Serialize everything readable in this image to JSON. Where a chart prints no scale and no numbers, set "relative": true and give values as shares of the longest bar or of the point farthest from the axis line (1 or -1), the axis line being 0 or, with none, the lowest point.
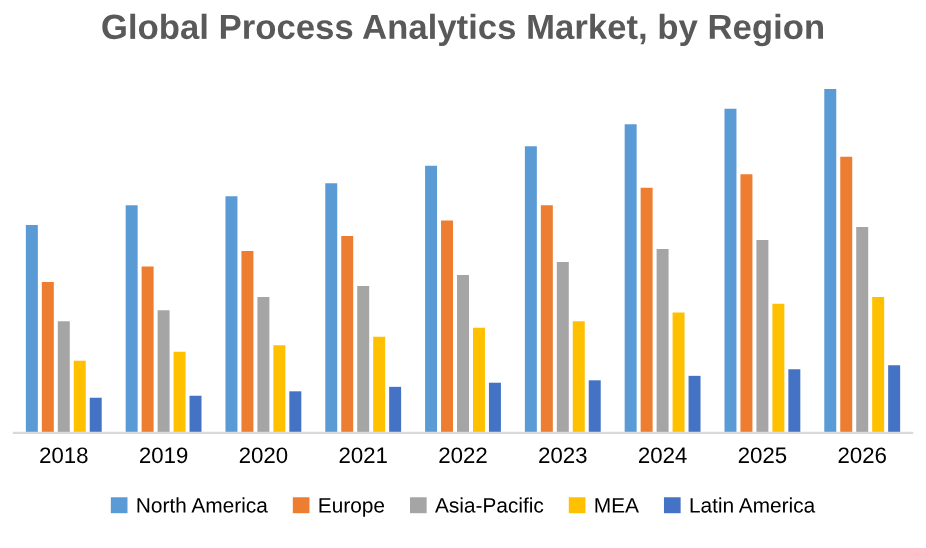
{
  "chart_data": {
    "type": "bar",
    "title": "Global Process Analytics Market, by Region",
    "relative": true,
    "legend": "bottom",
    "grid": false,
    "categories": [
      "2018",
      "2019",
      "2020",
      "2021",
      "2022",
      "2023",
      "2024",
      "2025",
      "2026"
    ],
    "series": [
      {
        "name": "North America",
        "color": "#5b9bd5",
        "values": [
          0.605,
          0.662,
          0.688,
          0.726,
          0.777,
          0.834,
          0.898,
          0.943,
          1
        ]
      },
      {
        "name": "Europe",
        "color": "#ed7d31",
        "values": [
          0.439,
          0.484,
          0.529,
          0.573,
          0.618,
          0.662,
          0.713,
          0.752,
          0.803
        ]
      },
      {
        "name": "Asia-Pacific",
        "color": "#a5a5a5",
        "values": [
          0.325,
          0.357,
          0.395,
          0.427,
          0.459,
          0.497,
          0.535,
          0.561,
          0.599
        ]
      },
      {
        "name": "MEA",
        "color": "#ffc000",
        "values": [
          0.21,
          0.236,
          0.255,
          0.28,
          0.306,
          0.325,
          0.35,
          0.376,
          0.395
        ]
      },
      {
        "name": "Latin America",
        "color": "#4472c4",
        "values": [
          0.102,
          0.108,
          0.121,
          0.134,
          0.146,
          0.153,
          0.166,
          0.185,
          0.197
        ]
      }
    ]
  }
}
